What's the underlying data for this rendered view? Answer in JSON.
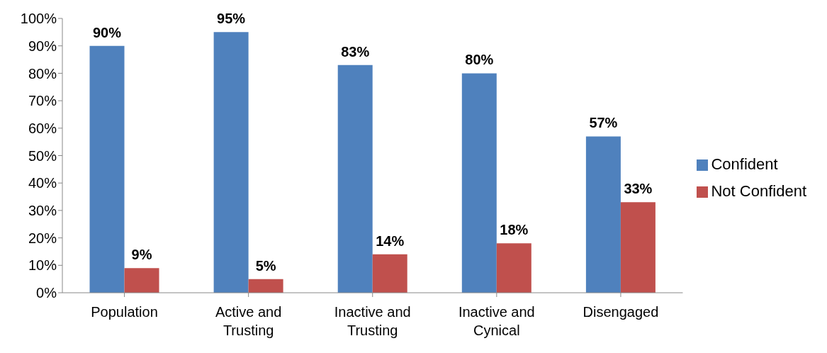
{
  "chart_data": {
    "type": "bar",
    "categories": [
      "Population",
      "Active and Trusting",
      "Inactive and Trusting",
      "Inactive and Cynical",
      "Disengaged"
    ],
    "series": [
      {
        "name": "Confident",
        "color": "#4f81bd",
        "values": [
          90,
          95,
          83,
          80,
          57
        ],
        "value_labels": [
          "90%",
          "95%",
          "83%",
          "80%",
          "57%"
        ]
      },
      {
        "name": "Not Confident",
        "color": "#c0504d",
        "values": [
          9,
          5,
          14,
          18,
          33
        ],
        "value_labels": [
          "9%",
          "5%",
          "14%",
          "18%",
          "33%"
        ]
      }
    ],
    "ylim": [
      0,
      100
    ],
    "yticks": [
      {
        "value": 0,
        "label": "0%"
      },
      {
        "value": 10,
        "label": "10%"
      },
      {
        "value": 20,
        "label": "20%"
      },
      {
        "value": 30,
        "label": "30%"
      },
      {
        "value": 40,
        "label": "40%"
      },
      {
        "value": 50,
        "label": "50%"
      },
      {
        "value": 60,
        "label": "60%"
      },
      {
        "value": 70,
        "label": "70%"
      },
      {
        "value": 80,
        "label": "80%"
      },
      {
        "value": 90,
        "label": "90%"
      },
      {
        "value": 100,
        "label": "100%"
      }
    ],
    "legend": "right",
    "grid": false
  }
}
